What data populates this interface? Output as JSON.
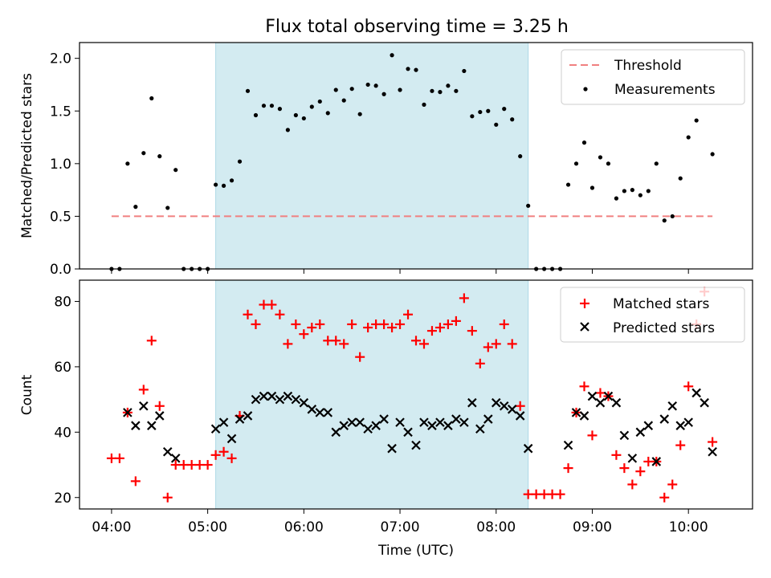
{
  "title": "Flux total observing time = 3.25 h",
  "xlabel": "Time (UTC)",
  "chart_data": [
    {
      "type": "scatter",
      "ylabel": "Matched/Predicted stars",
      "xlim": [
        "03:40",
        "10:40"
      ],
      "ylim": [
        0,
        2.15
      ],
      "yticks": [
        "0.0",
        "0.5",
        "1.0",
        "1.5",
        "2.0"
      ],
      "grid": false,
      "legend": "top-right",
      "shaded_interval": {
        "from": "05:05",
        "to": "08:20",
        "color": "#d3ebf1"
      },
      "threshold": {
        "name": "Threshold",
        "value": 0.5,
        "from": "04:00",
        "to": "10:15",
        "color": "#f08080"
      },
      "series": [
        {
          "name": "Measurements",
          "marker": "dot",
          "color": "#000000",
          "points": [
            [
              "04:00",
              0
            ],
            [
              "04:05",
              0
            ],
            [
              "04:10",
              1.0
            ],
            [
              "04:15",
              0.59
            ],
            [
              "04:20",
              1.1
            ],
            [
              "04:25",
              1.62
            ],
            [
              "04:30",
              1.07
            ],
            [
              "04:35",
              0.58
            ],
            [
              "04:40",
              0.94
            ],
            [
              "04:45",
              0
            ],
            [
              "04:50",
              0
            ],
            [
              "04:55",
              0
            ],
            [
              "05:00",
              0
            ],
            [
              "05:05",
              0.8
            ],
            [
              "05:10",
              0.79
            ],
            [
              "05:15",
              0.84
            ],
            [
              "05:20",
              1.02
            ],
            [
              "05:25",
              1.69
            ],
            [
              "05:30",
              1.46
            ],
            [
              "05:35",
              1.55
            ],
            [
              "05:40",
              1.55
            ],
            [
              "05:45",
              1.52
            ],
            [
              "05:50",
              1.32
            ],
            [
              "05:55",
              1.46
            ],
            [
              "06:00",
              1.43
            ],
            [
              "06:05",
              1.54
            ],
            [
              "06:10",
              1.59
            ],
            [
              "06:15",
              1.48
            ],
            [
              "06:20",
              1.7
            ],
            [
              "06:25",
              1.6
            ],
            [
              "06:30",
              1.71
            ],
            [
              "06:35",
              1.47
            ],
            [
              "06:40",
              1.75
            ],
            [
              "06:45",
              1.74
            ],
            [
              "06:50",
              1.66
            ],
            [
              "06:55",
              2.03
            ],
            [
              "07:00",
              1.7
            ],
            [
              "07:05",
              1.9
            ],
            [
              "07:10",
              1.89
            ],
            [
              "07:15",
              1.56
            ],
            [
              "07:20",
              1.69
            ],
            [
              "07:25",
              1.68
            ],
            [
              "07:30",
              1.74
            ],
            [
              "07:35",
              1.69
            ],
            [
              "07:40",
              1.88
            ],
            [
              "07:45",
              1.45
            ],
            [
              "07:50",
              1.49
            ],
            [
              "07:55",
              1.5
            ],
            [
              "08:00",
              1.37
            ],
            [
              "08:05",
              1.52
            ],
            [
              "08:10",
              1.42
            ],
            [
              "08:15",
              1.07
            ],
            [
              "08:20",
              0.6
            ],
            [
              "08:25",
              0
            ],
            [
              "08:30",
              0
            ],
            [
              "08:35",
              0
            ],
            [
              "08:40",
              0
            ],
            [
              "08:45",
              0.8
            ],
            [
              "08:50",
              1.0
            ],
            [
              "08:55",
              1.2
            ],
            [
              "09:00",
              0.77
            ],
            [
              "09:05",
              1.06
            ],
            [
              "09:10",
              1.0
            ],
            [
              "09:15",
              0.67
            ],
            [
              "09:20",
              0.74
            ],
            [
              "09:25",
              0.75
            ],
            [
              "09:30",
              0.7
            ],
            [
              "09:35",
              0.74
            ],
            [
              "09:40",
              1.0
            ],
            [
              "09:45",
              0.46
            ],
            [
              "09:50",
              0.5
            ],
            [
              "09:55",
              0.86
            ],
            [
              "10:00",
              1.25
            ],
            [
              "10:05",
              1.41
            ],
            [
              "10:10",
              1.7
            ],
            [
              "10:15",
              1.09
            ]
          ]
        }
      ]
    },
    {
      "type": "scatter",
      "ylabel": "Count",
      "xlim": [
        "03:40",
        "10:40"
      ],
      "ylim": [
        16.5,
        86.5
      ],
      "yticks": [
        "20",
        "40",
        "60",
        "80"
      ],
      "xticks": [
        "04:00",
        "05:00",
        "06:00",
        "07:00",
        "08:00",
        "09:00",
        "10:00"
      ],
      "grid": false,
      "legend": "top-right",
      "shaded_interval": {
        "from": "05:05",
        "to": "08:20",
        "color": "#d3ebf1"
      },
      "series": [
        {
          "name": "Matched stars",
          "marker": "plus",
          "color": "#ff0000",
          "points": [
            [
              "04:00",
              32
            ],
            [
              "04:05",
              32
            ],
            [
              "04:10",
              46
            ],
            [
              "04:15",
              25
            ],
            [
              "04:20",
              53
            ],
            [
              "04:25",
              68
            ],
            [
              "04:30",
              48
            ],
            [
              "04:35",
              20
            ],
            [
              "04:40",
              30
            ],
            [
              "04:45",
              30
            ],
            [
              "04:50",
              30
            ],
            [
              "04:55",
              30
            ],
            [
              "05:00",
              30
            ],
            [
              "05:05",
              33
            ],
            [
              "05:10",
              34
            ],
            [
              "05:15",
              32
            ],
            [
              "05:20",
              45
            ],
            [
              "05:25",
              76
            ],
            [
              "05:30",
              73
            ],
            [
              "05:35",
              79
            ],
            [
              "05:40",
              79
            ],
            [
              "05:45",
              76
            ],
            [
              "05:50",
              67
            ],
            [
              "05:55",
              73
            ],
            [
              "06:00",
              70
            ],
            [
              "06:05",
              72
            ],
            [
              "06:10",
              73
            ],
            [
              "06:15",
              68
            ],
            [
              "06:20",
              68
            ],
            [
              "06:25",
              67
            ],
            [
              "06:30",
              73
            ],
            [
              "06:35",
              63
            ],
            [
              "06:40",
              72
            ],
            [
              "06:45",
              73
            ],
            [
              "06:50",
              73
            ],
            [
              "06:55",
              72
            ],
            [
              "07:00",
              73
            ],
            [
              "07:05",
              76
            ],
            [
              "07:10",
              68
            ],
            [
              "07:15",
              67
            ],
            [
              "07:20",
              71
            ],
            [
              "07:25",
              72
            ],
            [
              "07:30",
              73
            ],
            [
              "07:35",
              74
            ],
            [
              "07:40",
              81
            ],
            [
              "07:45",
              71
            ],
            [
              "07:50",
              61
            ],
            [
              "07:55",
              66
            ],
            [
              "08:00",
              67
            ],
            [
              "08:05",
              73
            ],
            [
              "08:10",
              67
            ],
            [
              "08:15",
              48
            ],
            [
              "08:20",
              21
            ],
            [
              "08:25",
              21
            ],
            [
              "08:30",
              21
            ],
            [
              "08:35",
              21
            ],
            [
              "08:40",
              21
            ],
            [
              "08:45",
              29
            ],
            [
              "08:50",
              46
            ],
            [
              "08:55",
              54
            ],
            [
              "09:00",
              39
            ],
            [
              "09:05",
              52
            ],
            [
              "09:10",
              51
            ],
            [
              "09:15",
              33
            ],
            [
              "09:20",
              29
            ],
            [
              "09:25",
              24
            ],
            [
              "09:30",
              28
            ],
            [
              "09:35",
              31
            ],
            [
              "09:40",
              31
            ],
            [
              "09:45",
              20
            ],
            [
              "09:50",
              24
            ],
            [
              "09:55",
              36
            ],
            [
              "10:00",
              54
            ],
            [
              "10:05",
              73
            ],
            [
              "10:10",
              83
            ],
            [
              "10:15",
              37
            ]
          ]
        },
        {
          "name": "Predicted stars",
          "marker": "x",
          "color": "#000000",
          "points": [
            [
              "04:10",
              46
            ],
            [
              "04:15",
              42
            ],
            [
              "04:20",
              48
            ],
            [
              "04:25",
              42
            ],
            [
              "04:30",
              45
            ],
            [
              "04:35",
              34
            ],
            [
              "04:40",
              32
            ],
            [
              "05:05",
              41
            ],
            [
              "05:10",
              43
            ],
            [
              "05:15",
              38
            ],
            [
              "05:20",
              44
            ],
            [
              "05:25",
              45
            ],
            [
              "05:30",
              50
            ],
            [
              "05:35",
              51
            ],
            [
              "05:40",
              51
            ],
            [
              "05:45",
              50
            ],
            [
              "05:50",
              51
            ],
            [
              "05:55",
              50
            ],
            [
              "06:00",
              49
            ],
            [
              "06:05",
              47
            ],
            [
              "06:10",
              46
            ],
            [
              "06:15",
              46
            ],
            [
              "06:20",
              40
            ],
            [
              "06:25",
              42
            ],
            [
              "06:30",
              43
            ],
            [
              "06:35",
              43
            ],
            [
              "06:40",
              41
            ],
            [
              "06:45",
              42
            ],
            [
              "06:50",
              44
            ],
            [
              "06:55",
              35
            ],
            [
              "07:00",
              43
            ],
            [
              "07:05",
              40
            ],
            [
              "07:10",
              36
            ],
            [
              "07:15",
              43
            ],
            [
              "07:20",
              42
            ],
            [
              "07:25",
              43
            ],
            [
              "07:30",
              42
            ],
            [
              "07:35",
              44
            ],
            [
              "07:40",
              43
            ],
            [
              "07:45",
              49
            ],
            [
              "07:50",
              41
            ],
            [
              "07:55",
              44
            ],
            [
              "08:00",
              49
            ],
            [
              "08:05",
              48
            ],
            [
              "08:10",
              47
            ],
            [
              "08:15",
              45
            ],
            [
              "08:20",
              35
            ],
            [
              "08:45",
              36
            ],
            [
              "08:50",
              46
            ],
            [
              "08:55",
              45
            ],
            [
              "09:00",
              51
            ],
            [
              "09:05",
              49
            ],
            [
              "09:10",
              51
            ],
            [
              "09:15",
              49
            ],
            [
              "09:20",
              39
            ],
            [
              "09:25",
              32
            ],
            [
              "09:30",
              40
            ],
            [
              "09:35",
              42
            ],
            [
              "09:40",
              31
            ],
            [
              "09:45",
              44
            ],
            [
              "09:50",
              48
            ],
            [
              "09:55",
              42
            ],
            [
              "10:00",
              43
            ],
            [
              "10:05",
              52
            ],
            [
              "10:10",
              49
            ],
            [
              "10:15",
              34
            ]
          ]
        }
      ]
    }
  ]
}
